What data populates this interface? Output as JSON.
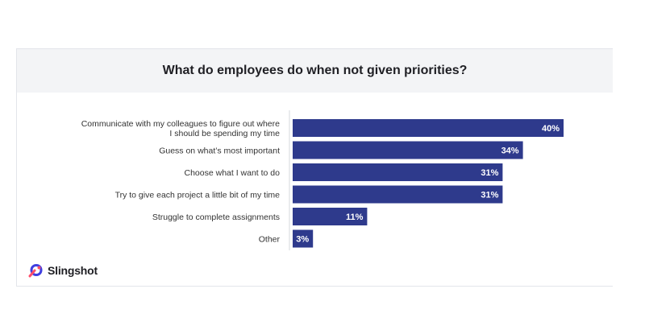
{
  "chart_data": {
    "type": "bar",
    "orientation": "horizontal",
    "title": "What do employees do when not given priorities?",
    "categories": [
      [
        "Communicate with my colleagues to figure out where",
        "I should be spending my time"
      ],
      [
        "Guess on what’s most important"
      ],
      [
        "Choose what I want to do"
      ],
      [
        "Try to give each project a little bit of my time"
      ],
      [
        "Struggle to complete assignments"
      ],
      [
        "Other"
      ]
    ],
    "values": [
      40,
      34,
      31,
      31,
      11,
      3
    ],
    "value_labels": [
      "40%",
      "34%",
      "31%",
      "31%",
      "11%",
      "3%"
    ],
    "unit": "%",
    "bar_color": "#2e3a8c",
    "label_color": "#ffffff",
    "xlim": [
      0,
      40
    ],
    "grid": false,
    "legend": "none"
  },
  "brand": {
    "name": "Slingshot",
    "colors": {
      "primary": "#3f3fe0",
      "accent": "#ff4d6a"
    }
  }
}
